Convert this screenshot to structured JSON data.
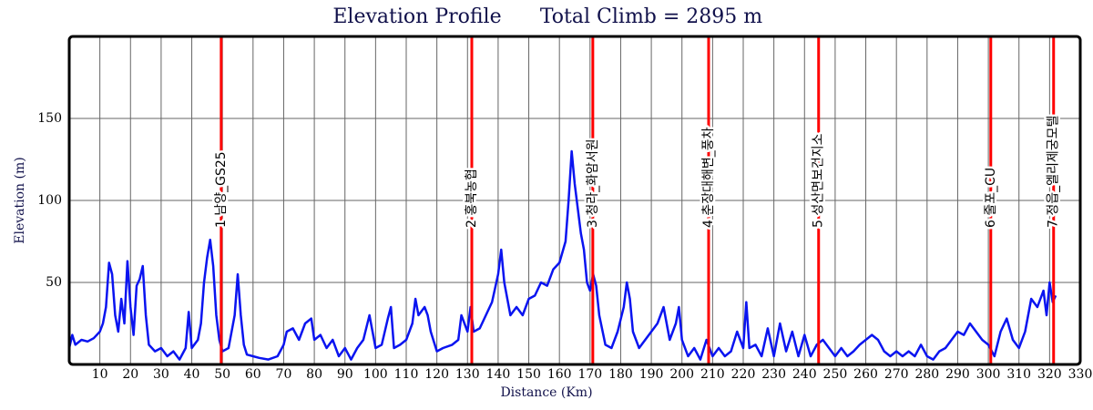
{
  "chart_data": {
    "type": "line",
    "title": "Elevation Profile",
    "subtitle": "Total Climb = 2895 m",
    "x_label": "Distance (Km)",
    "y_label": "Elevation (m)",
    "color": "#0a14f0",
    "marker_color": "#ff0000",
    "grid": true,
    "xlim": [
      0,
      330
    ],
    "ylim": [
      0,
      200
    ],
    "xticks": [
      10,
      20,
      30,
      40,
      50,
      60,
      70,
      80,
      90,
      100,
      110,
      120,
      130,
      140,
      150,
      160,
      170,
      180,
      190,
      200,
      210,
      220,
      230,
      240,
      250,
      260,
      270,
      280,
      290,
      300,
      310,
      320,
      330
    ],
    "yticks": [
      50,
      100,
      150
    ],
    "x": [
      0,
      1,
      2,
      4,
      6,
      8,
      10,
      11,
      12,
      13,
      14,
      15,
      16,
      17,
      18,
      19,
      20,
      21,
      22,
      23,
      24,
      25,
      26,
      28,
      30,
      32,
      34,
      36,
      38,
      39,
      40,
      42,
      43,
      44,
      45,
      46,
      47,
      48,
      49,
      50,
      52,
      54,
      55,
      56,
      57,
      58,
      60,
      62,
      65,
      68,
      70,
      71,
      73,
      75,
      77,
      79,
      80,
      82,
      84,
      86,
      88,
      90,
      92,
      94,
      96,
      98,
      99,
      100,
      102,
      104,
      105,
      106,
      108,
      110,
      112,
      113,
      114,
      116,
      117,
      118,
      120,
      122,
      125,
      127,
      128,
      130,
      131,
      132,
      134,
      136,
      138,
      140,
      141,
      142,
      144,
      146,
      148,
      150,
      152,
      154,
      156,
      158,
      160,
      162,
      163,
      164,
      165,
      166,
      167,
      168,
      169,
      170,
      171,
      172,
      173,
      175,
      177,
      179,
      181,
      182,
      183,
      184,
      186,
      188,
      190,
      192,
      194,
      196,
      198,
      199,
      200,
      202,
      204,
      206,
      208,
      210,
      212,
      214,
      216,
      218,
      220,
      221,
      222,
      224,
      226,
      228,
      230,
      232,
      234,
      236,
      238,
      240,
      242,
      244,
      246,
      248,
      250,
      252,
      254,
      256,
      258,
      260,
      262,
      264,
      266,
      268,
      270,
      272,
      274,
      276,
      278,
      280,
      282,
      284,
      286,
      288,
      290,
      292,
      294,
      296,
      298,
      300,
      302,
      304,
      306,
      308,
      310,
      312,
      314,
      316,
      317,
      318,
      319,
      320,
      321,
      322
    ],
    "values": [
      10,
      18,
      12,
      15,
      14,
      16,
      20,
      25,
      35,
      62,
      55,
      30,
      20,
      40,
      25,
      63,
      35,
      18,
      48,
      52,
      60,
      30,
      12,
      8,
      10,
      5,
      8,
      3,
      10,
      32,
      10,
      15,
      25,
      50,
      65,
      76,
      60,
      30,
      15,
      8,
      10,
      30,
      55,
      30,
      12,
      6,
      5,
      4,
      3,
      5,
      12,
      20,
      22,
      15,
      25,
      28,
      15,
      18,
      10,
      15,
      5,
      10,
      3,
      10,
      15,
      30,
      20,
      10,
      12,
      28,
      35,
      10,
      12,
      15,
      25,
      40,
      30,
      35,
      30,
      20,
      8,
      10,
      12,
      15,
      30,
      20,
      35,
      20,
      22,
      30,
      38,
      55,
      70,
      50,
      30,
      35,
      30,
      40,
      42,
      50,
      48,
      58,
      62,
      75,
      100,
      130,
      110,
      95,
      80,
      70,
      50,
      45,
      55,
      48,
      30,
      12,
      10,
      20,
      35,
      50,
      40,
      20,
      10,
      15,
      20,
      25,
      35,
      15,
      25,
      35,
      15,
      5,
      10,
      3,
      15,
      5,
      10,
      5,
      8,
      20,
      10,
      38,
      10,
      12,
      5,
      22,
      5,
      25,
      8,
      20,
      5,
      18,
      5,
      12,
      15,
      10,
      5,
      10,
      5,
      8,
      12,
      15,
      18,
      15,
      8,
      5,
      8,
      5,
      8,
      5,
      12,
      5,
      3,
      8,
      10,
      15,
      20,
      18,
      25,
      20,
      15,
      12,
      5,
      20,
      28,
      15,
      10,
      20,
      40,
      35,
      40,
      45,
      30,
      50,
      38,
      42
    ],
    "markers": [
      {
        "x": 49.6,
        "label": "1 남양_GS25"
      },
      {
        "x": 131.4,
        "label": "2 홍북농협"
      },
      {
        "x": 170.9,
        "label": "3 청라_화암서원"
      },
      {
        "x": 208.7,
        "label": "4 춘장대해변_풍차"
      },
      {
        "x": 244.6,
        "label": "5 성산면보건지소"
      },
      {
        "x": 300.8,
        "label": "6 줄포_CU"
      },
      {
        "x": 321.3,
        "label": "7 정읍_엘리제궁모텔"
      }
    ]
  }
}
